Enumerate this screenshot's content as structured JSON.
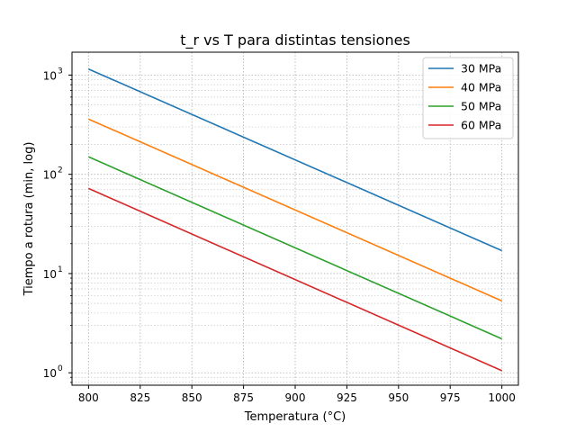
{
  "chart_data": {
    "type": "line",
    "title": "t_r vs T para distintas tensiones",
    "xlabel": "Temperatura (°C)",
    "ylabel": "Tiempo a rotura (min, log)",
    "x": [
      800,
      825,
      850,
      875,
      900,
      925,
      950,
      975,
      1000
    ],
    "xticks": [
      800,
      825,
      850,
      875,
      900,
      925,
      950,
      975,
      1000
    ],
    "xlim": [
      792,
      1008
    ],
    "yscale": "log",
    "ylim": [
      0.75,
      1700
    ],
    "yticks": [
      {
        "value": 1,
        "base": "10",
        "exp": "0"
      },
      {
        "value": 10,
        "base": "10",
        "exp": "1"
      },
      {
        "value": 100,
        "base": "10",
        "exp": "2"
      },
      {
        "value": 1000,
        "base": "10",
        "exp": "3"
      }
    ],
    "grid": true,
    "legend_position": "top-right",
    "series": [
      {
        "name": "30 MPa",
        "color": "#1f77b4",
        "start": 1150,
        "end": 17
      },
      {
        "name": "40 MPa",
        "color": "#ff7f0e",
        "start": 360,
        "end": 5.3
      },
      {
        "name": "50 MPa",
        "color": "#2ca02c",
        "start": 150,
        "end": 2.2
      },
      {
        "name": "60 MPa",
        "color": "#d62728",
        "start": 72,
        "end": 1.05
      }
    ]
  }
}
